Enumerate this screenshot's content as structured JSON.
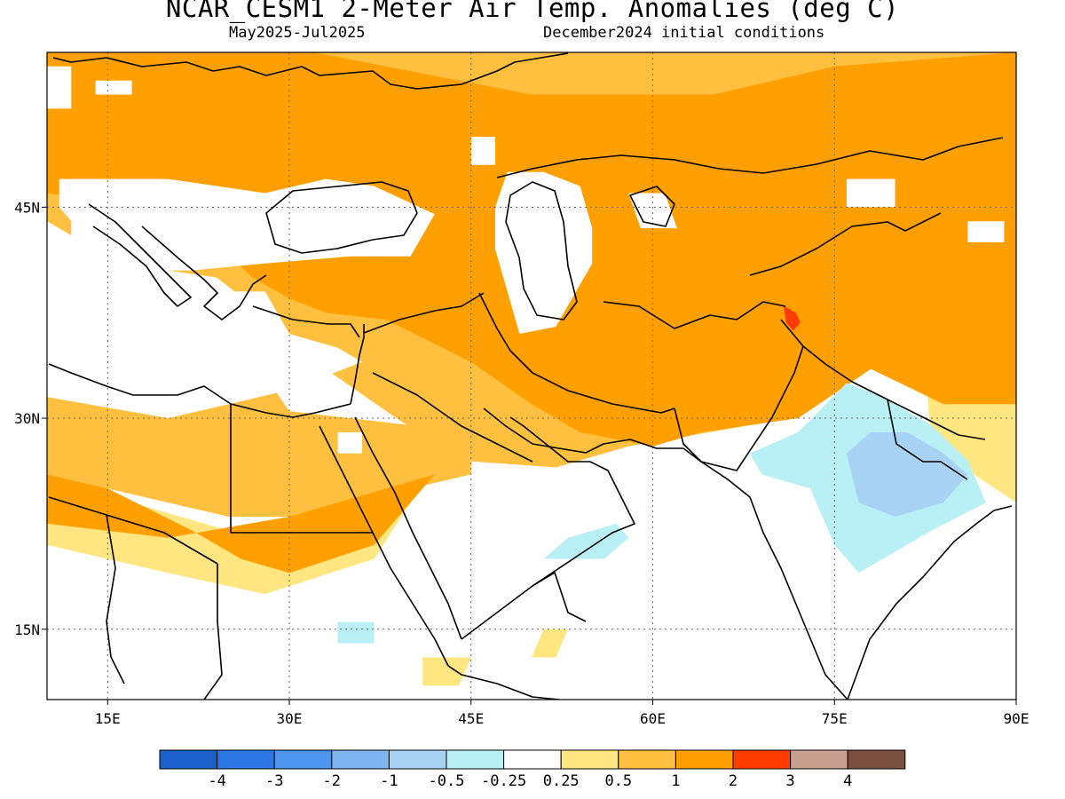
{
  "header": {
    "title": "NCAR_CESM1 2-Meter Air Temp. Anomalies (deg C)",
    "period": "May2025-Jul2025",
    "init": "December2024 initial conditions"
  },
  "map": {
    "lon_range": [
      10,
      90
    ],
    "lat_range": [
      10,
      56
    ],
    "lon_ticks": [
      {
        "value": 15,
        "label": "15E"
      },
      {
        "value": 30,
        "label": "30E"
      },
      {
        "value": 45,
        "label": "45E"
      },
      {
        "value": 60,
        "label": "60E"
      },
      {
        "value": 75,
        "label": "75E"
      },
      {
        "value": 90,
        "label": "90E"
      }
    ],
    "lat_ticks": [
      {
        "value": 15,
        "label": "15N"
      },
      {
        "value": 30,
        "label": "30N"
      },
      {
        "value": 45,
        "label": "45N"
      }
    ]
  },
  "colorbar": {
    "colors": [
      "#1a60c8",
      "#2b77e6",
      "#4d95ee",
      "#7fb6f2",
      "#a9d3f5",
      "#b8f0f5",
      "#ffffff",
      "#ffe680",
      "#ffc040",
      "#ffa000",
      "#ff3c00",
      "#c8a090",
      "#7a5040"
    ],
    "labels": [
      "-4",
      "-3",
      "-2",
      "-1",
      "-0.5",
      "-0.25",
      "0.25",
      "0.5",
      "1",
      "2",
      "3",
      "4"
    ]
  },
  "anomaly_fields": {
    "light_yellow": [
      [
        [
          43,
          56
        ],
        [
          65,
          56
        ],
        [
          65,
          51
        ],
        [
          52,
          51
        ],
        [
          43,
          53
        ]
      ],
      [
        [
          10,
          25
        ],
        [
          13,
          25
        ],
        [
          25,
          22
        ],
        [
          37,
          22
        ],
        [
          40,
          24
        ],
        [
          37,
          20
        ],
        [
          28,
          17.5
        ],
        [
          20,
          19
        ],
        [
          10,
          21
        ]
      ],
      [
        [
          41,
          13
        ],
        [
          45,
          13
        ],
        [
          44,
          11
        ],
        [
          41,
          11
        ]
      ],
      [
        [
          51,
          15
        ],
        [
          53,
          15
        ],
        [
          52,
          13
        ],
        [
          50,
          13
        ]
      ],
      [
        [
          82,
          39
        ],
        [
          90,
          40
        ],
        [
          90,
          24
        ],
        [
          83,
          28
        ]
      ]
    ],
    "light_orange": [
      [
        [
          10,
          56
        ],
        [
          90,
          56
        ],
        [
          90,
          37
        ],
        [
          86,
          32
        ],
        [
          78,
          33.5
        ],
        [
          68,
          29.5
        ],
        [
          58,
          28
        ],
        [
          52,
          26.5
        ],
        [
          44,
          27
        ],
        [
          38,
          30.5
        ],
        [
          33,
          33.5
        ],
        [
          28,
          36
        ],
        [
          27,
          38
        ],
        [
          24,
          40
        ],
        [
          20,
          40.5
        ],
        [
          16,
          41
        ],
        [
          13,
          42.5
        ],
        [
          10,
          44
        ]
      ],
      [
        [
          10,
          33
        ],
        [
          28,
          33
        ],
        [
          30,
          30.5
        ],
        [
          35,
          30
        ],
        [
          40,
          29.5
        ],
        [
          45,
          29
        ],
        [
          45,
          26
        ],
        [
          40,
          25
        ],
        [
          36,
          23
        ],
        [
          25,
          23
        ],
        [
          15,
          25
        ],
        [
          10,
          26
        ]
      ]
    ],
    "orange": [
      [
        [
          10,
          56
        ],
        [
          32,
          56
        ],
        [
          50,
          53
        ],
        [
          65,
          53
        ],
        [
          75,
          55
        ],
        [
          90,
          56
        ],
        [
          90,
          31
        ],
        [
          84,
          31
        ],
        [
          78,
          33.5
        ],
        [
          72,
          30
        ],
        [
          64,
          29
        ],
        [
          60,
          28
        ],
        [
          54,
          29
        ],
        [
          50,
          31
        ],
        [
          45,
          34
        ],
        [
          38,
          37
        ],
        [
          33,
          37.5
        ],
        [
          30,
          38.5
        ],
        [
          27,
          40
        ],
        [
          25,
          41.5
        ],
        [
          22,
          43
        ],
        [
          18,
          44.5
        ],
        [
          14,
          45.5
        ],
        [
          10,
          46
        ]
      ],
      [
        [
          10,
          26
        ],
        [
          15,
          25
        ],
        [
          22,
          22
        ],
        [
          26,
          20
        ],
        [
          30,
          19
        ],
        [
          37,
          21
        ],
        [
          40,
          24
        ],
        [
          42,
          26
        ],
        [
          38,
          25
        ],
        [
          30,
          23
        ],
        [
          20,
          21.5
        ],
        [
          10,
          22.5
        ]
      ]
    ],
    "red": [
      [
        [
          70.8,
          38
        ],
        [
          71.8,
          37.5
        ],
        [
          72.2,
          36.8
        ],
        [
          71.6,
          36.2
        ],
        [
          71,
          36.8
        ]
      ]
    ],
    "light_cyan": [
      [
        [
          68,
          27.5
        ],
        [
          72,
          29
        ],
        [
          76,
          32.5
        ],
        [
          79,
          31.5
        ],
        [
          83,
          29.5
        ],
        [
          86,
          27
        ],
        [
          87.5,
          24
        ],
        [
          83,
          22
        ],
        [
          80,
          20.5
        ],
        [
          77,
          19
        ],
        [
          75,
          21
        ],
        [
          73,
          25
        ],
        [
          69,
          26
        ]
      ],
      [
        [
          51,
          20
        ],
        [
          56,
          20
        ],
        [
          58,
          21.5
        ],
        [
          57,
          22.5
        ],
        [
          53,
          21.5
        ]
      ],
      [
        [
          34,
          15.5
        ],
        [
          37,
          15.5
        ],
        [
          37,
          14
        ],
        [
          34,
          14
        ]
      ]
    ],
    "light_blue": [
      [
        [
          76,
          27.5
        ],
        [
          78,
          29
        ],
        [
          81,
          29
        ],
        [
          84,
          27.5
        ],
        [
          86,
          26
        ],
        [
          84,
          24
        ],
        [
          80,
          23
        ],
        [
          77,
          24
        ]
      ]
    ],
    "mask": [
      [
        [
          10,
          55
        ],
        [
          12,
          55
        ],
        [
          12,
          52
        ],
        [
          10,
          52
        ]
      ],
      [
        [
          14,
          54
        ],
        [
          17,
          54
        ],
        [
          17,
          53
        ],
        [
          14,
          53
        ]
      ],
      [
        [
          11,
          47
        ],
        [
          20,
          47
        ],
        [
          28,
          46
        ],
        [
          33,
          47
        ],
        [
          37,
          46.5
        ],
        [
          42,
          44.5
        ],
        [
          40,
          41.5
        ],
        [
          35,
          41.5
        ],
        [
          28,
          41
        ],
        [
          22,
          40.5
        ],
        [
          19,
          40.5
        ],
        [
          16,
          41
        ],
        [
          13,
          43
        ],
        [
          11,
          45
        ]
      ],
      [
        [
          12,
          44
        ],
        [
          16,
          44
        ],
        [
          16,
          41
        ],
        [
          12,
          41
        ]
      ],
      [
        [
          25,
          38
        ],
        [
          28,
          38
        ],
        [
          28,
          37
        ],
        [
          25,
          37
        ]
      ],
      [
        [
          10,
          39
        ],
        [
          28,
          39
        ],
        [
          30,
          36
        ],
        [
          34,
          35
        ],
        [
          36,
          34
        ],
        [
          30,
          32
        ],
        [
          25,
          31
        ],
        [
          20,
          30
        ],
        [
          10,
          31.5
        ]
      ],
      [
        [
          48,
          47.5
        ],
        [
          51,
          47.5
        ],
        [
          54,
          46.5
        ],
        [
          55,
          43.5
        ],
        [
          55,
          41
        ],
        [
          53,
          38
        ],
        [
          52,
          36.5
        ],
        [
          49,
          36
        ],
        [
          48,
          39
        ],
        [
          47,
          42
        ],
        [
          47,
          45
        ]
      ],
      [
        [
          58,
          46
        ],
        [
          61,
          46
        ],
        [
          62,
          43.5
        ],
        [
          59,
          43.5
        ]
      ],
      [
        [
          76,
          47
        ],
        [
          80,
          47
        ],
        [
          80,
          45
        ],
        [
          76,
          45
        ]
      ],
      [
        [
          86,
          44
        ],
        [
          89,
          44
        ],
        [
          89,
          42.5
        ],
        [
          86,
          42.5
        ]
      ],
      [
        [
          34,
          29
        ],
        [
          36,
          29
        ],
        [
          36,
          27.5
        ],
        [
          34,
          27.5
        ]
      ],
      [
        [
          45,
          50
        ],
        [
          47,
          50
        ],
        [
          47,
          48
        ],
        [
          45,
          48
        ]
      ]
    ]
  }
}
